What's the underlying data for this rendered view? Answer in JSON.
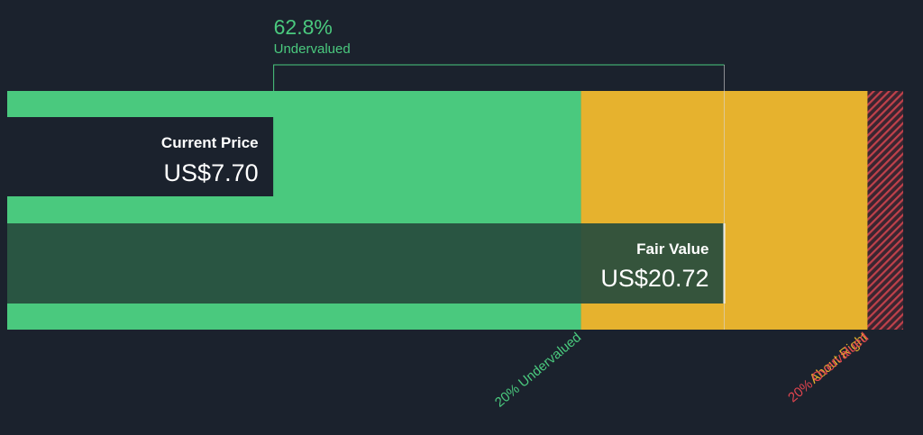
{
  "chart_data": {
    "type": "bar",
    "title": "",
    "current_price": {
      "label": "Current Price",
      "value": 7.7,
      "display": "US$7.70"
    },
    "fair_value": {
      "label": "Fair Value",
      "value": 20.72,
      "display": "US$20.72"
    },
    "valuation": {
      "percent_text": "62.8%",
      "status_text": "Undervalued",
      "percent": 62.8
    },
    "scale_max": 25.89,
    "zones": [
      {
        "name": "20% Undervalued",
        "from": 0,
        "to": 16.58,
        "color": "#4ac97e",
        "label_color": "#4ac97e"
      },
      {
        "name": "About Right",
        "from": 16.58,
        "to": 24.86,
        "color": "#e6b22e",
        "label_color": "#e6b22e"
      },
      {
        "name": "20% Overvalued",
        "from": 24.86,
        "to": 25.89,
        "color": "#c0414b",
        "label_color": "#e0454f"
      }
    ],
    "colors": {
      "background": "#1b222d",
      "undervalued": "#4ac97e",
      "about_right": "#e6b22e",
      "overvalued": "#c0414b",
      "fair_value_box": "#274c3d"
    }
  }
}
